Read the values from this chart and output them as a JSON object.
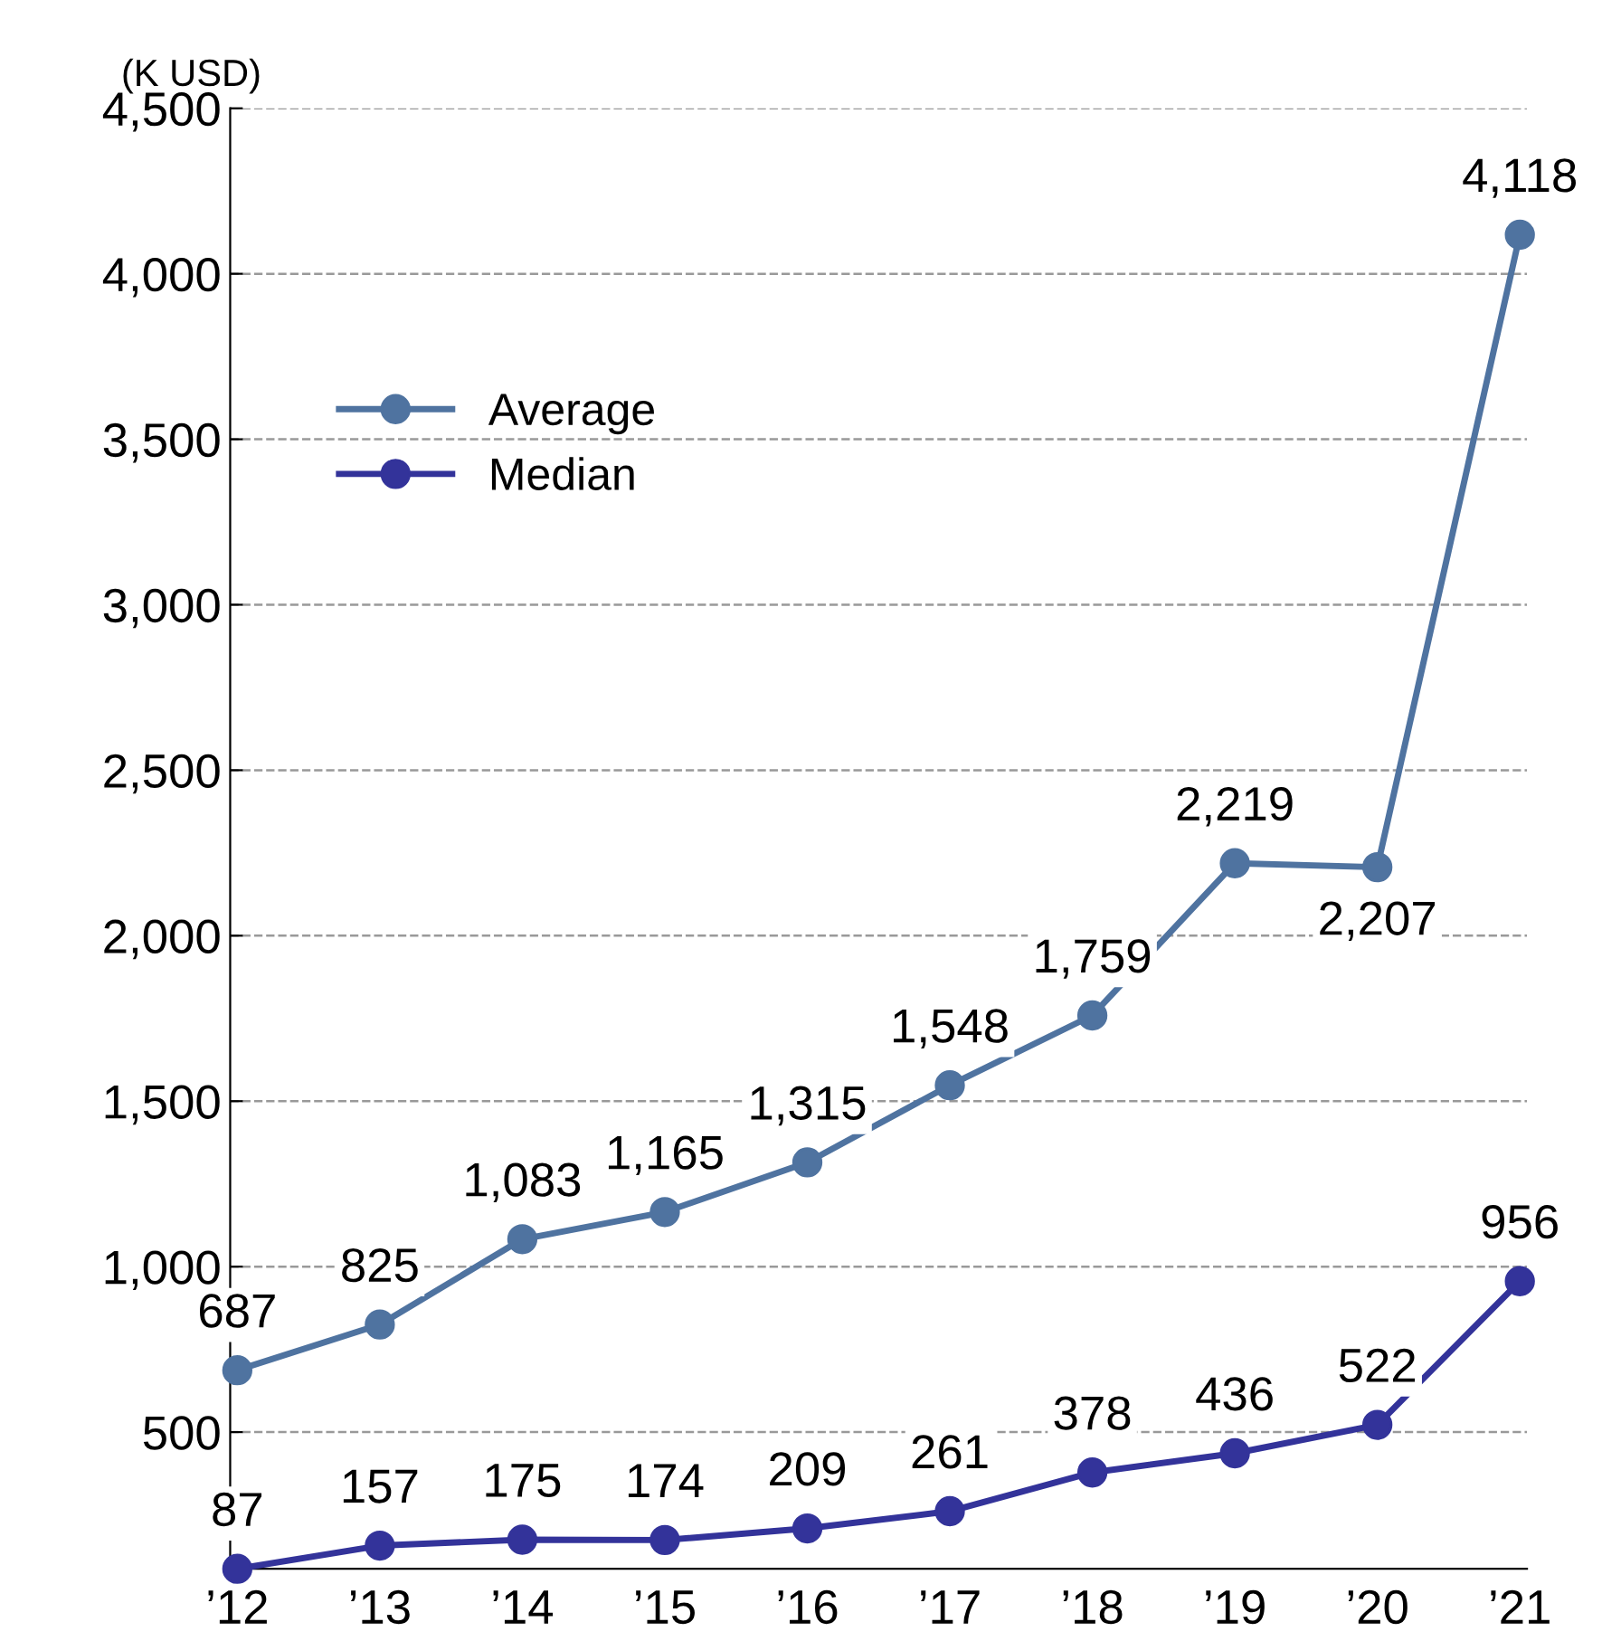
{
  "chart_data": {
    "type": "line",
    "ylabel": "(K USD)",
    "categories": [
      "’12",
      "’13",
      "’14",
      "’15",
      "’16",
      "’17",
      "’18",
      "’19",
      "’20",
      "’21"
    ],
    "series": [
      {
        "name": "Average",
        "color": "#4f73a0",
        "values": [
          687,
          825,
          1083,
          1165,
          1315,
          1548,
          1759,
          2219,
          2207,
          4118
        ],
        "value_labels": [
          "687",
          "825",
          "1,083",
          "1,165",
          "1,315",
          "1,548",
          "1,759",
          "2,219",
          "2,207",
          "4,118"
        ]
      },
      {
        "name": "Median",
        "color": "#33339a",
        "values": [
          87,
          157,
          175,
          174,
          209,
          261,
          378,
          436,
          522,
          956
        ],
        "value_labels": [
          "87",
          "157",
          "175",
          "174",
          "209",
          "261",
          "378",
          "436",
          "522",
          "956"
        ]
      }
    ],
    "ylim": [
      87,
      4500
    ],
    "yticks": [
      500,
      {
        "value": 1000,
        "label": "1,000"
      },
      {
        "value": 1500,
        "label": "1,500"
      },
      {
        "value": 2000,
        "label": "2,000"
      },
      {
        "value": 2500,
        "label": "2,500"
      },
      {
        "value": 3000,
        "label": "3,000"
      },
      {
        "value": 3500,
        "label": "3,500"
      },
      {
        "value": 4000,
        "label": "4,000"
      },
      {
        "value": 4500,
        "label": "4,500"
      }
    ],
    "grid": "y",
    "legend": "top left",
    "marker": "circle",
    "line_style": "solid"
  }
}
